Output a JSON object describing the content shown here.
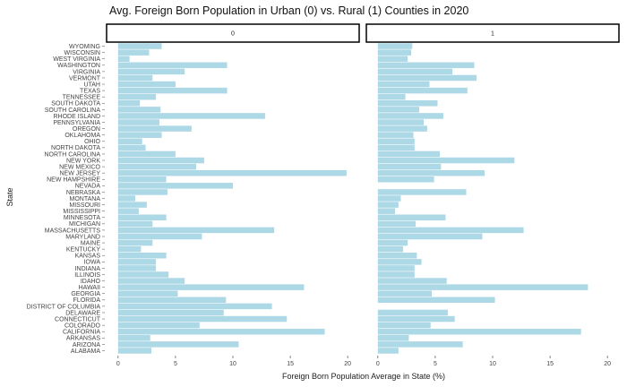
{
  "chart_data": {
    "type": "bar",
    "orientation": "horizontal",
    "title": "Avg. Foreign Born Population in Urban (0) vs. Rural (1) Counties in 2020",
    "xlabel": "Foreign Born Population Average in State (%)",
    "ylabel": "State",
    "xlim": [
      -1,
      21
    ],
    "xticks": [
      0,
      5,
      10,
      15,
      20
    ],
    "bar_color": "#add8e6",
    "grid": false,
    "categories": [
      "WYOMING",
      "WISCONSIN",
      "WEST VIRGINIA",
      "WASHINGTON",
      "VIRGINIA",
      "VERMONT",
      "UTAH",
      "TEXAS",
      "TENNESSEE",
      "SOUTH DAKOTA",
      "SOUTH CAROLINA",
      "RHODE ISLAND",
      "PENNSYLVANIA",
      "OREGON",
      "OKLAHOMA",
      "OHIO",
      "NORTH DAKOTA",
      "NORTH CAROLINA",
      "NEW YORK",
      "NEW MEXICO",
      "NEW JERSEY",
      "NEW HAMPSHIRE",
      "NEVADA",
      "NEBRASKA",
      "MONTANA",
      "MISSOURI",
      "MISSISSIPPI",
      "MINNESOTA",
      "MICHIGAN",
      "MASSACHUSETTS",
      "MARYLAND",
      "MAINE",
      "KENTUCKY",
      "KANSAS",
      "IOWA",
      "INDIANA",
      "ILLINOIS",
      "IDAHO",
      "HAWAII",
      "GEORGIA",
      "FLORIDA",
      "DISTRICT OF COLUMBIA",
      "DELAWARE",
      "CONNECTICUT",
      "COLORADO",
      "CALIFORNIA",
      "ARKANSAS",
      "ARIZONA",
      "ALABAMA"
    ],
    "series": [
      {
        "name": "0",
        "values": [
          3.8,
          2.7,
          1.0,
          9.5,
          5.8,
          3.0,
          5.0,
          9.5,
          3.3,
          1.9,
          3.7,
          12.8,
          3.6,
          6.4,
          3.8,
          2.1,
          2.4,
          5.0,
          7.5,
          6.8,
          19.9,
          4.2,
          10.0,
          4.3,
          1.5,
          2.5,
          1.8,
          4.2,
          3.0,
          13.6,
          7.3,
          3.0,
          2.0,
          4.2,
          3.3,
          3.3,
          4.4,
          5.8,
          16.2,
          5.2,
          9.4,
          13.4,
          9.2,
          14.7,
          7.1,
          18.0,
          2.8,
          10.5,
          2.9
        ]
      },
      {
        "name": "1",
        "values": [
          3.0,
          2.9,
          2.6,
          8.4,
          6.5,
          8.6,
          4.5,
          7.8,
          2.4,
          5.2,
          3.6,
          5.7,
          4.0,
          4.3,
          3.1,
          3.2,
          3.2,
          5.4,
          11.9,
          5.5,
          9.3,
          4.9,
          0,
          7.7,
          2.0,
          1.8,
          1.5,
          5.9,
          3.3,
          12.7,
          9.1,
          2.6,
          2.2,
          3.4,
          3.8,
          3.2,
          3.2,
          6.0,
          18.3,
          4.7,
          10.2,
          0,
          6.1,
          6.7,
          4.6,
          17.7,
          2.7,
          7.4,
          1.8
        ]
      }
    ]
  }
}
